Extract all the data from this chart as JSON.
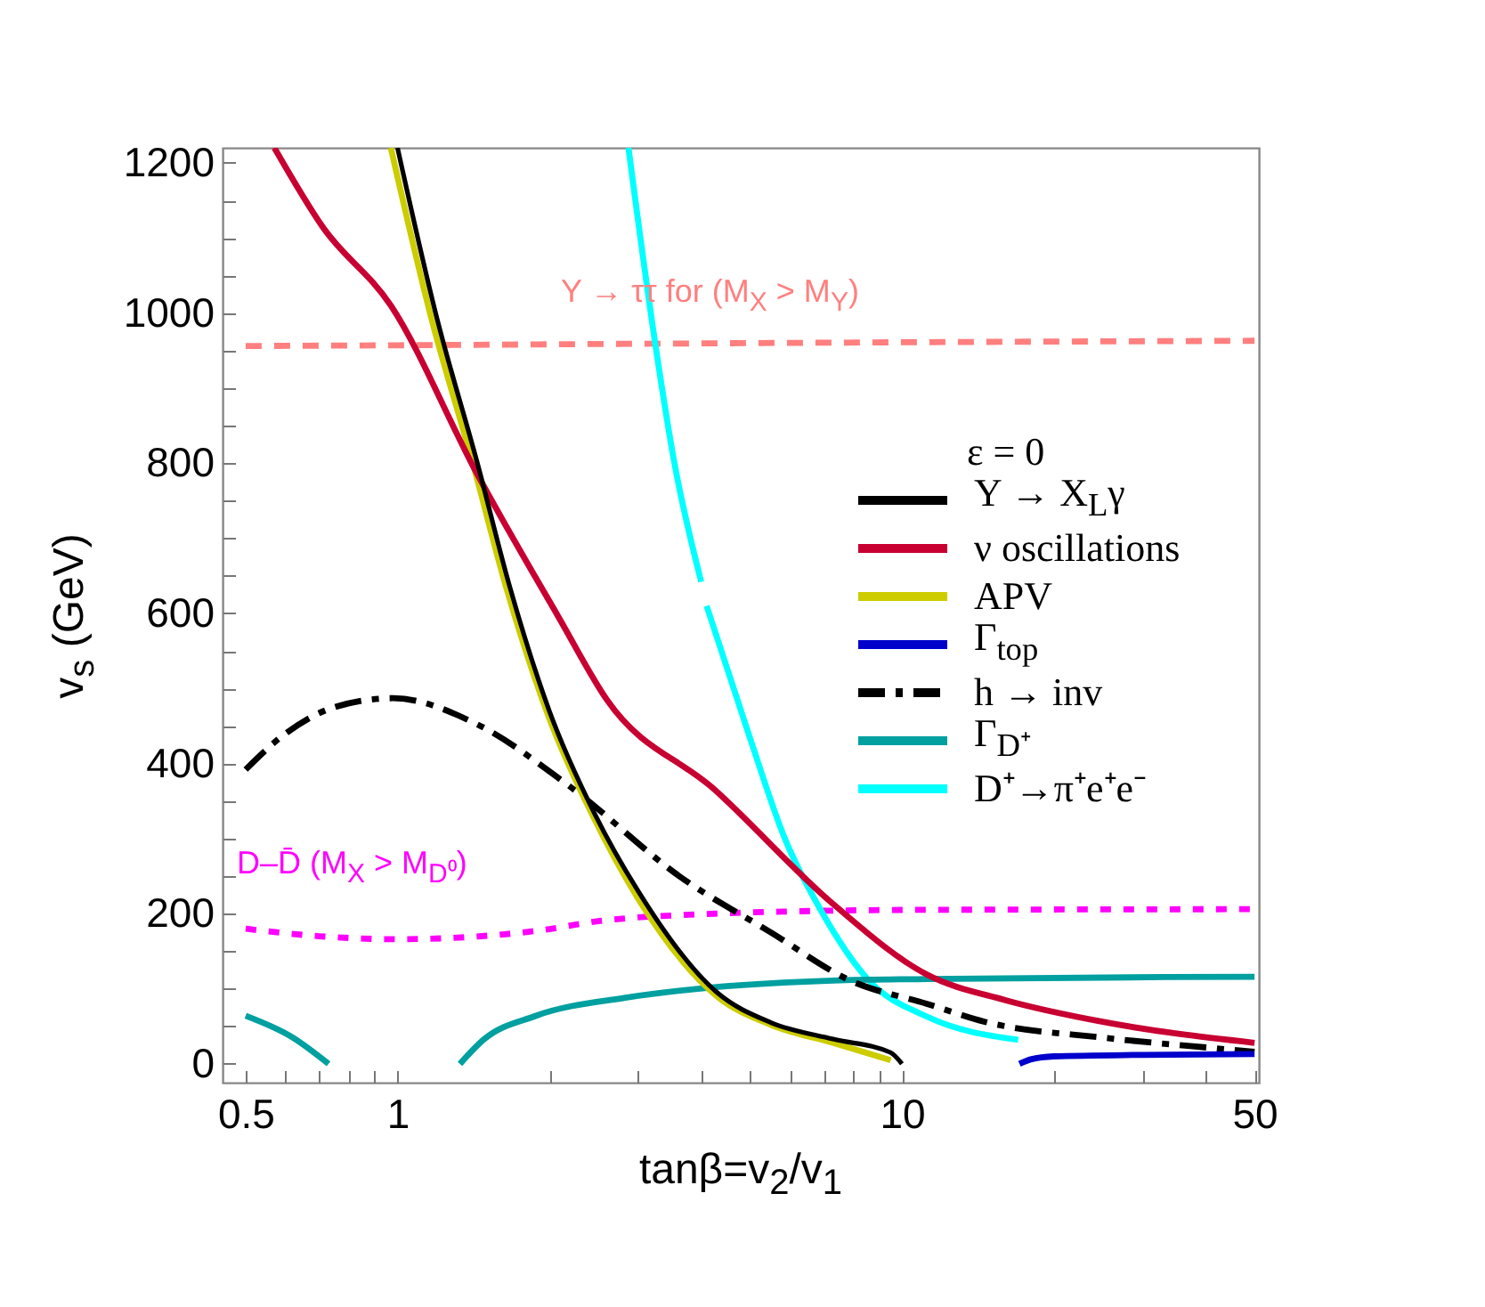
{
  "chart_data": {
    "type": "line",
    "xlabel": "tanβ=v$_{2}$/v$_{1}$",
    "ylabel": "v$_{s}$ (GeV)",
    "legend_title": "ε = 0",
    "legend": "right",
    "log": "x",
    "xlim": [
      0.45,
      51
    ],
    "ylim": [
      -25,
      1220
    ],
    "xticks": [
      0.5,
      {
        "value": 0.6,
        "label": null
      },
      {
        "value": 0.7,
        "label": null
      },
      {
        "value": 0.8,
        "label": null
      },
      {
        "value": 0.9,
        "label": null
      },
      1,
      {
        "value": 2,
        "label": null
      },
      {
        "value": 3,
        "label": null
      },
      {
        "value": 4,
        "label": null
      },
      {
        "value": 5,
        "label": null
      },
      {
        "value": 6,
        "label": null
      },
      {
        "value": 7,
        "label": null
      },
      {
        "value": 8,
        "label": null
      },
      {
        "value": 9,
        "label": null
      },
      10,
      {
        "value": 20,
        "label": null
      },
      {
        "value": 30,
        "label": null
      },
      {
        "value": 40,
        "label": null
      },
      50
    ],
    "yticks": [
      0,
      {
        "value": 50,
        "label": null
      },
      {
        "value": 100,
        "label": null
      },
      {
        "value": 150,
        "label": null
      },
      200,
      {
        "value": 250,
        "label": null
      },
      {
        "value": 300,
        "label": null
      },
      {
        "value": 350,
        "label": null
      },
      400,
      {
        "value": 450,
        "label": null
      },
      {
        "value": 500,
        "label": null
      },
      {
        "value": 550,
        "label": null
      },
      600,
      {
        "value": 650,
        "label": null
      },
      {
        "value": 700,
        "label": null
      },
      {
        "value": 750,
        "label": null
      },
      800,
      {
        "value": 850,
        "label": null
      },
      {
        "value": 900,
        "label": null
      },
      {
        "value": 950,
        "label": null
      },
      1000,
      {
        "value": 1050,
        "label": null
      },
      {
        "value": 1100,
        "label": null
      },
      {
        "value": 1150,
        "label": null
      },
      1200
    ],
    "series": [
      {
        "name": "Υ → X$_{L}$γ",
        "color": "#000000",
        "line_style": "solid",
        "x": [
          1.0,
          1.19,
          1.44,
          1.67,
          2.0,
          2.46,
          3.0,
          4.3,
          5.5,
          7.3,
          9.5,
          10.0
        ],
        "values": [
          1220,
          1000,
          800,
          635,
          470,
          333,
          230,
          95,
          55,
          33,
          15,
          0
        ]
      },
      {
        "name": "ν oscillations",
        "color": "#c80032",
        "line_style": "solid",
        "x": [
          0.57,
          0.71,
          0.97,
          1.44,
          2.09,
          2.6,
          4.24,
          7.3,
          11.2,
          16,
          25,
          50
        ],
        "values": [
          1220,
          1115,
          1010,
          785,
          594,
          485,
          366,
          213,
          119,
          85,
          56,
          28
        ]
      },
      {
        "name": "APV",
        "color": "#cccc00",
        "line_style": "solid",
        "x": [
          0.97,
          1.16,
          1.41,
          1.65,
          2.0,
          2.44,
          3.0,
          4.3,
          5.5,
          7.3,
          9.5
        ],
        "values": [
          1220,
          1000,
          800,
          630,
          460,
          330,
          220,
          90,
          52,
          28,
          5
        ]
      },
      {
        "name": "Γ$_{top}$",
        "color": "#0000cc",
        "line_style": "solid",
        "x": [
          17.1,
          18,
          20,
          30,
          50
        ],
        "values": [
          0,
          6,
          10,
          12,
          13
        ]
      },
      {
        "name": "h → inv",
        "color": "#000000",
        "line_style": "dashdot",
        "x": [
          0.5,
          0.6,
          0.75,
          0.98,
          1.44,
          2.16,
          3.69,
          5.5,
          7.9,
          11.2,
          14.6,
          25,
          43,
          50
        ],
        "values": [
          392,
          440,
          475,
          487,
          452,
          373,
          246,
          175,
          111,
          80,
          56,
          35,
          20,
          16
        ]
      },
      {
        "name": "Γ$_{D⁺}$",
        "color": "#00a0a0",
        "line_style": "solid",
        "x": [
          0.5,
          0.62,
          0.73,
          1.0,
          1.33,
          1.48,
          1.88,
          2.83,
          4.24,
          7.3,
          11.2,
          50
        ],
        "values": [
          64,
          35,
          0,
          null,
          0,
          32,
          64,
          88,
          102,
          111,
          113,
          116
        ]
      },
      {
        "name": "D⁺→π⁺e⁺e⁻",
        "color": "#00ffff",
        "line_style": "solid",
        "x": [
          2.87,
          3.24,
          3.54,
          4.0,
          4.03,
          4.1,
          4.98,
          5.86,
          6.9,
          8.6,
          11.2,
          17
        ],
        "values": [
          1220,
          961,
          800,
          642,
          null,
          610,
          437,
          300,
          205,
          111,
          63,
          32
        ]
      },
      {
        "color": "#ff7f7f",
        "line_style": "dashed",
        "x": [
          0.5,
          1,
          3,
          10,
          50
        ],
        "values": [
          956,
          957,
          959,
          961,
          963
        ]
      },
      {
        "color": "#ff00ff",
        "line_style": "dotted",
        "x": [
          0.5,
          0.7,
          1.0,
          1.88,
          2.5,
          4.24,
          6,
          10,
          50
        ],
        "values": [
          180,
          170,
          166,
          177,
          190,
          200,
          203,
          205,
          206
        ]
      }
    ],
    "annotations": [
      "Υ → ττ for (M$_{X}$ > M$_{Υ}$)",
      "D–D̄ (M$_{X}$ > M$_{D⁰}$)"
    ]
  }
}
